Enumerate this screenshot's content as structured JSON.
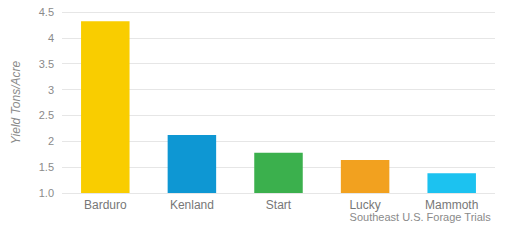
{
  "chart_data": {
    "type": "bar",
    "categories": [
      "Barduro",
      "Kenland",
      "Start",
      "Lucky",
      "Mammoth"
    ],
    "values": [
      4.32,
      2.12,
      1.78,
      1.64,
      1.38
    ],
    "colors": [
      "#f9cd00",
      "#0e97d3",
      "#3bb04d",
      "#f2a11f",
      "#1cc2f0"
    ],
    "y_label": "Yield Tons/Acre",
    "x_label": "Southeast U.S. Forage Trials",
    "ylim": [
      1.0,
      4.5
    ],
    "yticks": [
      {
        "value": 1.0,
        "label": "1.0"
      },
      1.5,
      2,
      2.5,
      3,
      3.5,
      4,
      4.5
    ],
    "grid": true
  }
}
